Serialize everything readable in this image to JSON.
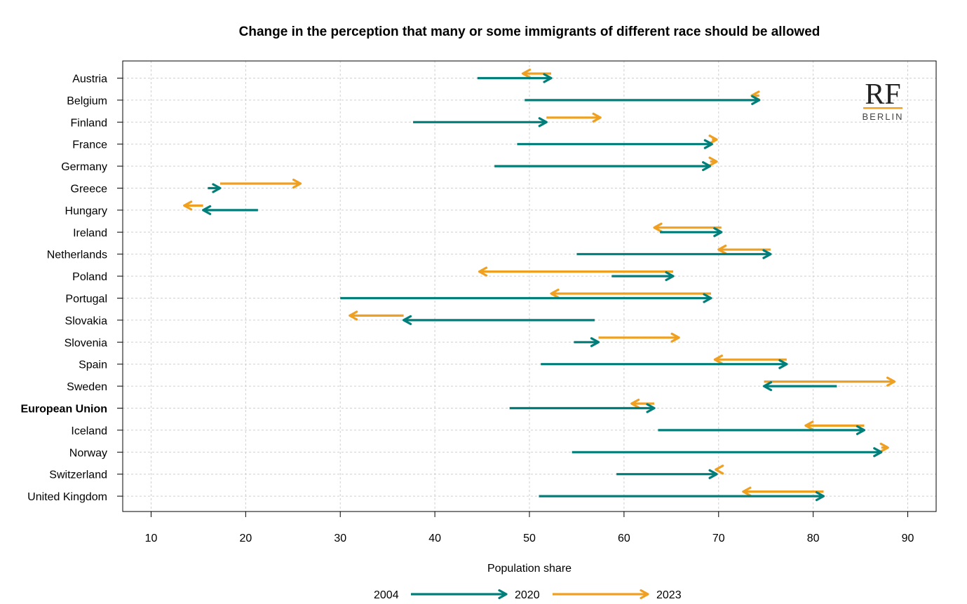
{
  "chart_data": {
    "type": "dumbbell-arrow",
    "title": "Change in the perception that many or some immigrants of different race should be allowed",
    "xlabel": "Population share",
    "xlim": [
      7,
      93
    ],
    "xticks": [
      10,
      20,
      30,
      40,
      50,
      60,
      70,
      80,
      90
    ],
    "grid": true,
    "legend_position": "bottom",
    "legend": {
      "labels": [
        "2004",
        "2020",
        "2023"
      ],
      "colors": [
        "#007f7a",
        "#f0a020"
      ]
    },
    "series": [
      {
        "name": "2004 → 2020",
        "color": "#007f7a"
      },
      {
        "name": "2020 → 2023",
        "color": "#f0a020"
      }
    ],
    "rows": [
      {
        "country": "Austria",
        "bold": false,
        "v2004": 44.5,
        "v2020": 52.3,
        "v2023": 49.3
      },
      {
        "country": "Belgium",
        "bold": false,
        "v2004": 49.5,
        "v2020": 74.3,
        "v2023": 73.5
      },
      {
        "country": "Finland",
        "bold": false,
        "v2004": 37.7,
        "v2020": 51.8,
        "v2023": 57.5
      },
      {
        "country": "France",
        "bold": false,
        "v2004": 48.7,
        "v2020": 69.3,
        "v2023": 69.8
      },
      {
        "country": "Germany",
        "bold": false,
        "v2004": 46.3,
        "v2020": 69.1,
        "v2023": 69.8
      },
      {
        "country": "Greece",
        "bold": false,
        "v2004": 16.0,
        "v2020": 17.3,
        "v2023": 25.8
      },
      {
        "country": "Hungary",
        "bold": false,
        "v2004": 21.3,
        "v2020": 15.5,
        "v2023": 13.5
      },
      {
        "country": "Ireland",
        "bold": false,
        "v2004": 63.8,
        "v2020": 70.3,
        "v2023": 63.2
      },
      {
        "country": "Netherlands",
        "bold": false,
        "v2004": 55.0,
        "v2020": 75.5,
        "v2023": 70.0
      },
      {
        "country": "Poland",
        "bold": false,
        "v2004": 58.7,
        "v2020": 65.2,
        "v2023": 44.7
      },
      {
        "country": "Portugal",
        "bold": false,
        "v2004": 30.0,
        "v2020": 69.2,
        "v2023": 52.3
      },
      {
        "country": "Slovakia",
        "bold": false,
        "v2004": 56.9,
        "v2020": 36.7,
        "v2023": 31.0
      },
      {
        "country": "Slovenia",
        "bold": false,
        "v2004": 54.7,
        "v2020": 57.3,
        "v2023": 65.8
      },
      {
        "country": "Spain",
        "bold": false,
        "v2004": 51.2,
        "v2020": 77.2,
        "v2023": 69.6
      },
      {
        "country": "Sweden",
        "bold": false,
        "v2004": 82.5,
        "v2020": 74.8,
        "v2023": 88.6
      },
      {
        "country": "European Union",
        "bold": true,
        "v2004": 47.9,
        "v2020": 63.2,
        "v2023": 60.8
      },
      {
        "country": "Iceland",
        "bold": false,
        "v2004": 63.6,
        "v2020": 85.4,
        "v2023": 79.2
      },
      {
        "country": "Norway",
        "bold": false,
        "v2004": 54.5,
        "v2020": 87.2,
        "v2023": 87.9
      },
      {
        "country": "Switzerland",
        "bold": false,
        "v2004": 59.2,
        "v2020": 69.8,
        "v2023": 69.7
      },
      {
        "country": "United Kingdom",
        "bold": false,
        "v2004": 51.0,
        "v2020": 81.1,
        "v2023": 72.6
      }
    ]
  },
  "logo": {
    "main": "RF",
    "sub": "BERLIN",
    "accent": "#f0a020"
  }
}
